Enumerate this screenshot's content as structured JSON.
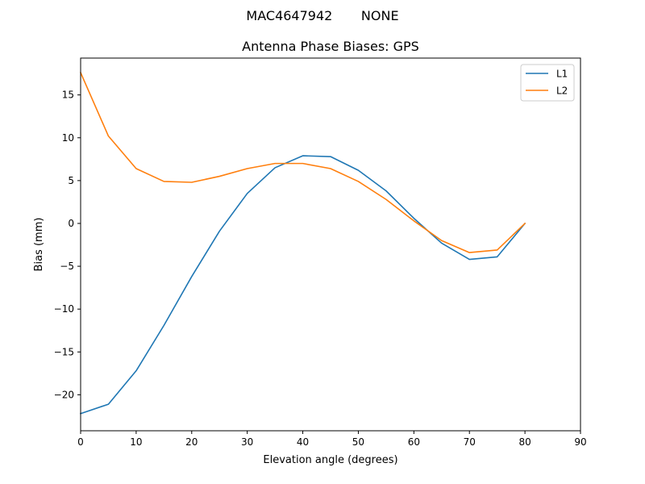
{
  "suptitle": "MAC4647942       NONE",
  "chart_data": {
    "type": "line",
    "title": "Antenna Phase Biases: GPS",
    "xlabel": "Elevation angle (degrees)",
    "ylabel": "Bias (mm)",
    "xlim": [
      0,
      90
    ],
    "ylim": [
      -24.2,
      19.3
    ],
    "xticks": [
      0,
      10,
      20,
      30,
      40,
      50,
      60,
      70,
      80,
      90
    ],
    "yticks": [
      15,
      10,
      5,
      0,
      -5,
      -10,
      -15,
      -20
    ],
    "ytick_labels": [
      "15",
      "10",
      "5",
      "0",
      "−5",
      "−10",
      "−15",
      "−20"
    ],
    "grid": false,
    "legend_position": "top-right",
    "x": [
      0,
      5,
      10,
      15,
      20,
      25,
      30,
      35,
      40,
      45,
      50,
      55,
      60,
      65,
      70,
      75,
      80
    ],
    "series": [
      {
        "name": "L1",
        "color": "#1f77b4",
        "values": [
          -22.2,
          -21.1,
          -17.2,
          -11.9,
          -6.2,
          -0.9,
          3.5,
          6.5,
          7.9,
          7.8,
          6.2,
          3.8,
          0.6,
          -2.3,
          -4.2,
          -3.9,
          0.0
        ]
      },
      {
        "name": "L2",
        "color": "#ff7f0e",
        "values": [
          17.6,
          10.2,
          6.4,
          4.9,
          4.8,
          5.5,
          6.4,
          7.0,
          7.0,
          6.4,
          4.9,
          2.8,
          0.3,
          -2.0,
          -3.4,
          -3.1,
          0.0
        ]
      }
    ]
  }
}
